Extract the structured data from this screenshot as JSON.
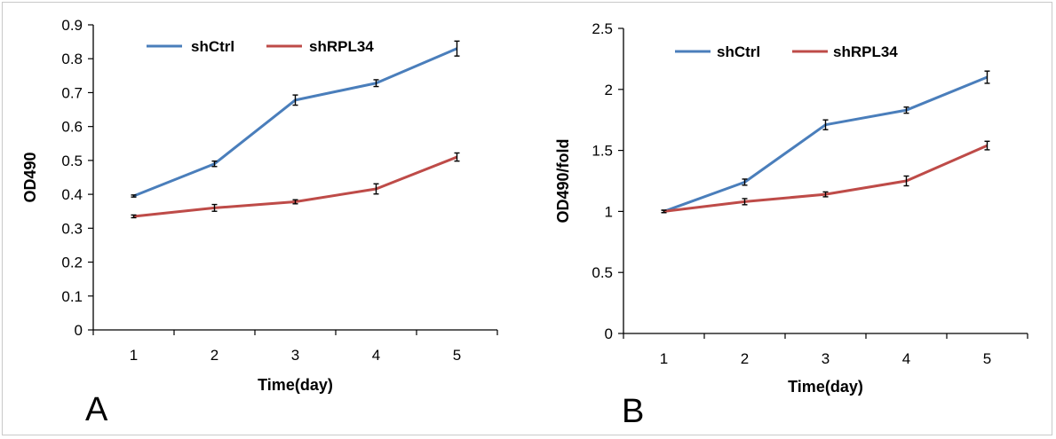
{
  "chart_data": [
    {
      "type": "line",
      "panel_label": "A",
      "title": "",
      "xlabel": "Time(day)",
      "ylabel": "OD490",
      "x": [
        1,
        2,
        3,
        4,
        5
      ],
      "x_tick_labels": [
        "1",
        "2",
        "3",
        "4",
        "5"
      ],
      "y_tick_labels": [
        "0",
        "0.1",
        "0.2",
        "0.3",
        "0.4",
        "0.5",
        "0.6",
        "0.7",
        "0.8",
        "0.9"
      ],
      "ylim": [
        0,
        0.9
      ],
      "grid": false,
      "legend_position": "top",
      "series": [
        {
          "name": "shCtrl",
          "color": "#4a7ebb",
          "values": [
            0.395,
            0.49,
            0.678,
            0.728,
            0.83
          ],
          "errors": [
            0.003,
            0.008,
            0.015,
            0.01,
            0.022
          ]
        },
        {
          "name": "shRPL34",
          "color": "#be4b48",
          "values": [
            0.335,
            0.36,
            0.378,
            0.416,
            0.51
          ],
          "errors": [
            0.004,
            0.01,
            0.006,
            0.015,
            0.012
          ]
        }
      ]
    },
    {
      "type": "line",
      "panel_label": "B",
      "title": "",
      "xlabel": "Time(day)",
      "ylabel": "OD490/fold",
      "x": [
        1,
        2,
        3,
        4,
        5
      ],
      "x_tick_labels": [
        "1",
        "2",
        "3",
        "4",
        "5"
      ],
      "y_tick_labels": [
        "0",
        "0.5",
        "1",
        "1.5",
        "2",
        "2.5"
      ],
      "ylim": [
        0,
        2.5
      ],
      "grid": false,
      "legend_position": "top",
      "series": [
        {
          "name": "shCtrl",
          "color": "#4a7ebb",
          "values": [
            1.0,
            1.24,
            1.71,
            1.83,
            2.1
          ],
          "errors": [
            0.01,
            0.025,
            0.04,
            0.025,
            0.05
          ]
        },
        {
          "name": "shRPL34",
          "color": "#be4b48",
          "values": [
            1.0,
            1.08,
            1.14,
            1.25,
            1.54
          ],
          "errors": [
            0.01,
            0.025,
            0.02,
            0.04,
            0.035
          ]
        }
      ]
    }
  ]
}
